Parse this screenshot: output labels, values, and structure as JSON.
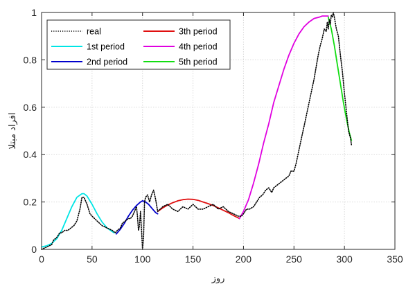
{
  "chart_data": {
    "type": "line",
    "xlabel": "روز",
    "ylabel": "افراد مبتلا",
    "xlim": [
      0,
      350
    ],
    "ylim": [
      0,
      1
    ],
    "xticks": [
      0,
      50,
      100,
      150,
      200,
      250,
      300,
      350
    ],
    "xtick_labels": [
      "0",
      "50",
      "100",
      "150",
      "200",
      "250",
      "300",
      "350"
    ],
    "yticks": [
      0,
      0.2,
      0.4,
      0.6,
      0.8,
      1
    ],
    "ytick_labels": [
      "0",
      "0.2",
      "0.4",
      "0.6",
      "0.8",
      "1"
    ],
    "grid": true,
    "legend_position": "top-left",
    "series": [
      {
        "name": "real",
        "color": "#000000",
        "style": "dotted",
        "x": [
          0,
          5,
          10,
          12,
          15,
          18,
          20,
          23,
          26,
          29,
          32,
          35,
          38,
          40,
          42,
          45,
          48,
          50,
          55,
          60,
          65,
          70,
          73,
          75,
          78,
          80,
          83,
          86,
          88,
          90,
          92,
          94,
          95,
          96,
          97,
          98,
          99,
          100,
          101,
          102,
          103,
          105,
          107,
          109,
          111,
          113,
          115,
          120,
          125,
          130,
          135,
          140,
          145,
          150,
          155,
          160,
          165,
          170,
          175,
          180,
          185,
          190,
          195,
          198,
          200,
          203,
          206,
          210,
          213,
          216,
          219,
          222,
          225,
          228,
          230,
          233,
          236,
          239,
          242,
          245,
          247,
          250,
          252,
          254,
          256,
          258,
          260,
          262,
          264,
          266,
          268,
          270,
          272,
          274,
          276,
          278,
          280,
          282,
          283,
          284,
          285,
          286,
          287,
          288,
          289,
          290,
          292,
          294,
          296,
          298,
          300,
          302,
          304,
          306,
          307
        ],
        "y": [
          0,
          0.01,
          0.02,
          0.04,
          0.05,
          0.07,
          0.07,
          0.08,
          0.08,
          0.09,
          0.1,
          0.12,
          0.17,
          0.22,
          0.22,
          0.19,
          0.15,
          0.14,
          0.12,
          0.1,
          0.09,
          0.08,
          0.07,
          0.08,
          0.09,
          0.11,
          0.12,
          0.13,
          0.13,
          0.14,
          0.16,
          0.18,
          0.14,
          0.08,
          0.1,
          0.16,
          0.08,
          0,
          0.05,
          0.2,
          0.22,
          0.23,
          0.2,
          0.23,
          0.25,
          0.21,
          0.16,
          0.18,
          0.19,
          0.17,
          0.16,
          0.18,
          0.17,
          0.19,
          0.17,
          0.17,
          0.18,
          0.19,
          0.17,
          0.18,
          0.16,
          0.15,
          0.14,
          0.14,
          0.15,
          0.17,
          0.17,
          0.18,
          0.2,
          0.22,
          0.23,
          0.25,
          0.26,
          0.24,
          0.26,
          0.27,
          0.28,
          0.29,
          0.3,
          0.31,
          0.33,
          0.33,
          0.36,
          0.4,
          0.44,
          0.48,
          0.52,
          0.56,
          0.6,
          0.64,
          0.68,
          0.72,
          0.77,
          0.82,
          0.86,
          0.89,
          0.93,
          0.92,
          0.96,
          0.93,
          0.97,
          0.95,
          0.99,
          0.98,
          1,
          0.98,
          0.93,
          0.9,
          0.82,
          0.75,
          0.66,
          0.58,
          0.5,
          0.47,
          0.44
        ]
      },
      {
        "name": "1st period",
        "color": "#00e5e5",
        "style": "solid",
        "x": [
          0,
          5,
          10,
          15,
          20,
          25,
          30,
          35,
          40,
          42,
          45,
          50,
          55,
          60,
          65,
          70,
          72
        ],
        "y": [
          0.01,
          0.015,
          0.025,
          0.045,
          0.08,
          0.13,
          0.18,
          0.22,
          0.235,
          0.235,
          0.225,
          0.19,
          0.15,
          0.115,
          0.09,
          0.075,
          0.07
        ]
      },
      {
        "name": "2nd period",
        "color": "#0000cc",
        "style": "solid",
        "x": [
          74,
          78,
          82,
          86,
          90,
          94,
          98,
          100,
          103,
          106,
          110,
          113,
          115
        ],
        "y": [
          0.065,
          0.085,
          0.11,
          0.14,
          0.165,
          0.185,
          0.2,
          0.205,
          0.2,
          0.19,
          0.17,
          0.155,
          0.15
        ]
      },
      {
        "name": "3th period",
        "color": "#e01010",
        "style": "solid",
        "x": [
          115,
          120,
          125,
          130,
          135,
          140,
          145,
          150,
          155,
          160,
          165,
          170,
          175,
          180,
          185,
          190,
          196
        ],
        "y": [
          0.16,
          0.175,
          0.187,
          0.197,
          0.205,
          0.21,
          0.212,
          0.211,
          0.207,
          0.2,
          0.193,
          0.185,
          0.175,
          0.165,
          0.155,
          0.143,
          0.13
        ]
      },
      {
        "name": "4th period",
        "color": "#e000e0",
        "style": "solid",
        "x": [
          196,
          200,
          205,
          210,
          215,
          220,
          225,
          230,
          235,
          240,
          245,
          250,
          255,
          260,
          265,
          270,
          275,
          278,
          281,
          284
        ],
        "y": [
          0.13,
          0.16,
          0.21,
          0.28,
          0.36,
          0.45,
          0.53,
          0.62,
          0.69,
          0.76,
          0.82,
          0.87,
          0.91,
          0.94,
          0.96,
          0.975,
          0.98,
          0.985,
          0.985,
          0.985
        ]
      },
      {
        "name": "5th period",
        "color": "#11dd11",
        "style": "solid",
        "x": [
          284,
          287,
          290,
          293,
          296,
          299,
          302,
          305,
          307
        ],
        "y": [
          0.98,
          0.93,
          0.86,
          0.78,
          0.7,
          0.62,
          0.55,
          0.49,
          0.46
        ]
      }
    ]
  }
}
